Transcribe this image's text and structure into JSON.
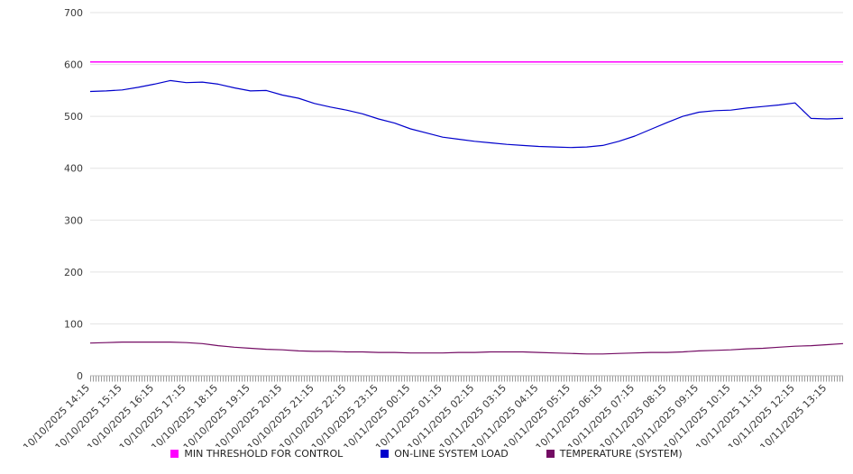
{
  "chart_data": {
    "type": "line",
    "title": "",
    "xlabel": "",
    "ylabel": "",
    "ylim": [
      0,
      700
    ],
    "y_ticks": [
      0,
      100,
      200,
      300,
      400,
      500,
      600,
      700
    ],
    "grid": true,
    "legend_position": "bottom",
    "x_step_minutes": 30,
    "label_every": 2,
    "x_labels": [
      "10/10/2025 14:15",
      "10/10/2025 15:15",
      "10/10/2025 16:15",
      "10/10/2025 17:15",
      "10/10/2025 18:15",
      "10/10/2025 19:15",
      "10/10/2025 20:15",
      "10/10/2025 21:15",
      "10/10/2025 22:15",
      "10/10/2025 23:15",
      "10/11/2025 00:15",
      "10/11/2025 01:15",
      "10/11/2025 02:15",
      "10/11/2025 03:15",
      "10/11/2025 04:15",
      "10/11/2025 05:15",
      "10/11/2025 06:15",
      "10/11/2025 07:15",
      "10/11/2025 08:15",
      "10/11/2025 09:15",
      "10/11/2025 10:15",
      "10/11/2025 11:15",
      "10/11/2025 12:15",
      "10/11/2025 13:15"
    ],
    "series": [
      {
        "name": "MIN THRESHOLD FOR CONTROL",
        "color": "#ff00ff",
        "constant_value": 605
      },
      {
        "name": "ON-LINE SYSTEM LOAD",
        "color": "#0000cc",
        "values": [
          548,
          549,
          551,
          556,
          562,
          569,
          565,
          566,
          562,
          555,
          549,
          550,
          541,
          535,
          525,
          518,
          512,
          505,
          495,
          487,
          476,
          468,
          460,
          456,
          452,
          449,
          446,
          444,
          442,
          441,
          440,
          441,
          444,
          452,
          462,
          475,
          488,
          500,
          508,
          511,
          512,
          516,
          519,
          522,
          526,
          496,
          495,
          496
        ]
      },
      {
        "name": "TEMPERATURE (SYSTEM)",
        "color": "#730b63",
        "values": [
          63,
          64,
          65,
          65,
          65,
          65,
          64,
          62,
          58,
          55,
          53,
          51,
          50,
          48,
          47,
          47,
          46,
          46,
          45,
          45,
          44,
          44,
          44,
          45,
          45,
          46,
          46,
          46,
          45,
          44,
          43,
          42,
          42,
          43,
          44,
          45,
          45,
          46,
          48,
          49,
          50,
          52,
          53,
          55,
          57,
          58,
          60,
          62
        ]
      }
    ]
  },
  "style_colors": {
    "grid": "#e3e3e3",
    "axis": "#b5b5b5",
    "tick_band": "#9a9a9a",
    "tick_text": "#3a3a3a"
  }
}
